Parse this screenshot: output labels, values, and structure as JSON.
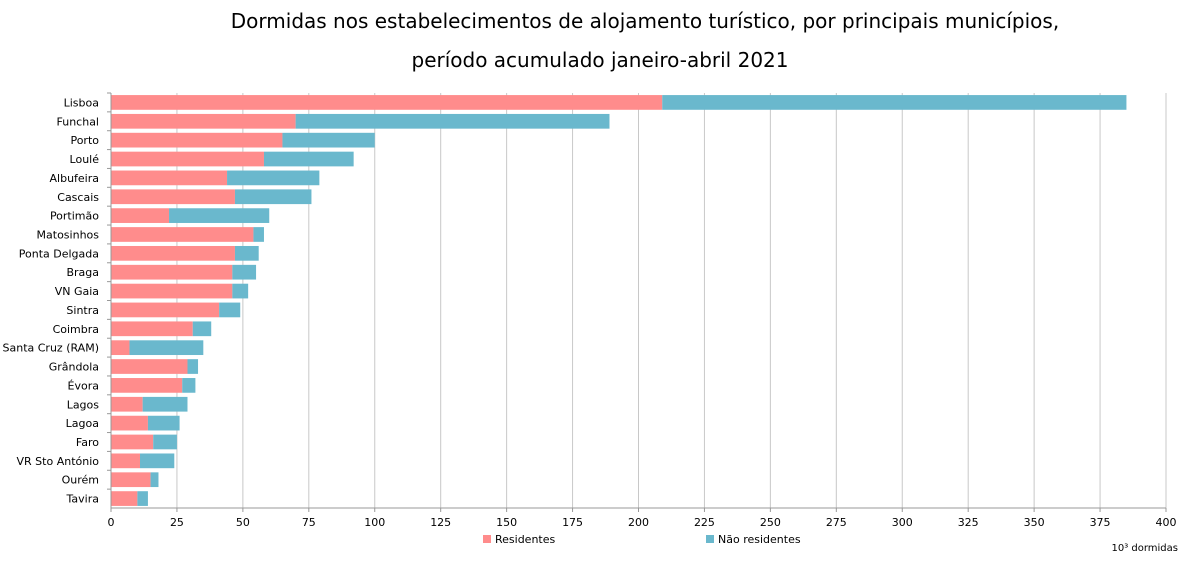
{
  "chart_data": {
    "type": "bar",
    "orientation": "horizontal",
    "stacked": true,
    "title_line1": "Dormidas nos estabelecimentos de alojamento turístico, por principais municípios,",
    "title_line2": "período acumulado janeiro-abril 2021",
    "unit_label": "10³ dormidas",
    "categories": [
      "Lisboa",
      "Funchal",
      "Porto",
      "Loulé",
      "Albufeira",
      "Cascais",
      "Portimão",
      "Matosinhos",
      "Ponta Delgada",
      "Braga",
      "VN Gaia",
      "Sintra",
      "Coimbra",
      "Santa Cruz (RAM)",
      "Grândola",
      "Évora",
      "Lagos",
      "Lagoa",
      "Faro",
      "VR Sto António",
      "Ourém",
      "Tavira"
    ],
    "series": [
      {
        "name": "Residentes",
        "color": "#ff8c8c",
        "values": [
          209,
          70,
          65,
          58,
          44,
          47,
          22,
          54,
          47,
          46,
          46,
          41,
          31,
          7,
          29,
          27,
          12,
          14,
          16,
          11,
          15,
          10
        ]
      },
      {
        "name": "Não residentes",
        "color": "#6ab8cd",
        "values": [
          176,
          119,
          35,
          34,
          35,
          29,
          38,
          4,
          9,
          9,
          6,
          8,
          7,
          28,
          4,
          5,
          17,
          12,
          9,
          13,
          3,
          4
        ]
      }
    ],
    "xlim": [
      0,
      400
    ],
    "xticks": [
      0,
      25,
      50,
      75,
      100,
      125,
      150,
      175,
      200,
      225,
      250,
      275,
      300,
      325,
      350,
      375,
      400
    ],
    "grid": true,
    "legend_position": "bottom"
  }
}
